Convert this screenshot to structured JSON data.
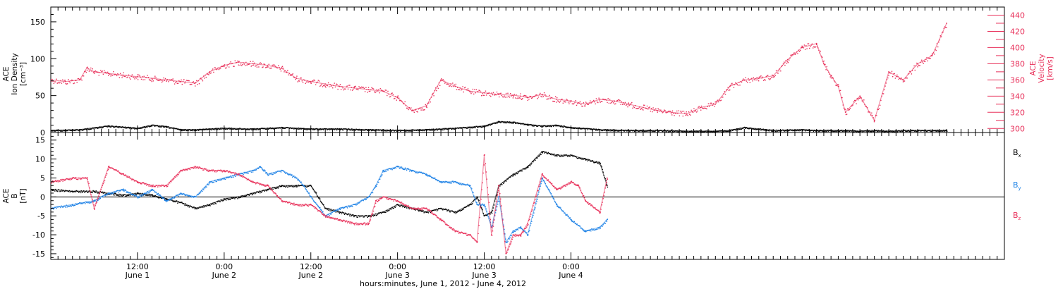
{
  "chart_data": [
    {
      "type": "scatter",
      "panel": "top",
      "ylabel_lines": [
        "ACE",
        "Ion Density",
        "[cm⁻³]"
      ],
      "ylim": [
        0,
        170
      ],
      "yticks": [
        0,
        50,
        100,
        150
      ],
      "y2label_lines": [
        "ACE",
        "Velocity",
        "[km/s]"
      ],
      "y2lim": [
        295,
        450
      ],
      "y2ticks": [
        300,
        320,
        340,
        360,
        380,
        400,
        420,
        440
      ],
      "series": [
        {
          "axis": "left",
          "color": "#000000",
          "x": [
            0,
            4,
            8,
            12,
            14,
            16,
            18,
            20,
            24,
            28,
            32,
            36,
            40,
            44,
            48,
            52,
            56,
            60,
            62,
            64,
            66,
            68,
            70,
            72,
            76,
            80,
            84,
            88,
            90,
            92,
            94,
            96,
            100,
            104,
            106,
            108,
            110,
            112,
            114,
            116,
            118,
            120,
            124
          ],
          "values": [
            3,
            4,
            9,
            6,
            10,
            8,
            4,
            4,
            6,
            5,
            7,
            5,
            5,
            4,
            3,
            4,
            6,
            9,
            15,
            14,
            11,
            9,
            10,
            7,
            4,
            3,
            3,
            2,
            2,
            2,
            3,
            7,
            3,
            4,
            3,
            3,
            3,
            2,
            3,
            2,
            3,
            3,
            3
          ]
        },
        {
          "axis": "right",
          "color": "#e8305a",
          "x": [
            0,
            2,
            4,
            5,
            6,
            8,
            10,
            12,
            14,
            16,
            18,
            20,
            22,
            24,
            26,
            28,
            30,
            32,
            34,
            36,
            38,
            40,
            42,
            44,
            46,
            48,
            50,
            52,
            54,
            56,
            58,
            60,
            62,
            64,
            65,
            66,
            68,
            70,
            72,
            74,
            76,
            78,
            80,
            82,
            84,
            86,
            88,
            90,
            92,
            94,
            96,
            98,
            100,
            102,
            104,
            106,
            107,
            108,
            109,
            110,
            112,
            114,
            116,
            118,
            120,
            122,
            124
          ],
          "values": [
            360,
            358,
            360,
            375,
            370,
            368,
            366,
            364,
            362,
            360,
            358,
            356,
            370,
            378,
            382,
            380,
            378,
            374,
            362,
            358,
            355,
            352,
            350,
            348,
            346,
            338,
            322,
            328,
            360,
            352,
            346,
            344,
            342,
            341,
            340,
            338,
            342,
            336,
            334,
            330,
            336,
            334,
            330,
            326,
            322,
            320,
            318,
            326,
            330,
            352,
            360,
            362,
            365,
            385,
            400,
            405,
            380,
            365,
            352,
            320,
            340,
            310,
            370,
            360,
            380,
            390,
            430
          ]
        }
      ]
    },
    {
      "type": "scatter",
      "panel": "bottom",
      "ylabel_lines": [
        "ACE",
        "B",
        "[nT]"
      ],
      "ylim": [
        -16.5,
        17
      ],
      "yticks": [
        -15,
        -10,
        -5,
        0,
        5,
        10,
        15
      ],
      "xlabel": "hours:minutes, June  1, 2012 - June  4, 2012",
      "xlim": [
        0,
        132
      ],
      "x_ticks": [
        {
          "x": 12,
          "time": "12:00",
          "day": "June 1"
        },
        {
          "x": 24,
          "time": "0:00",
          "day": "June 2"
        },
        {
          "x": 36,
          "time": "12:00",
          "day": "June 2"
        },
        {
          "x": 48,
          "time": "0:00",
          "day": "June 3"
        },
        {
          "x": 60,
          "time": "12:00",
          "day": "June 3"
        },
        {
          "x": 72,
          "time": "0:00",
          "day": "June 4"
        }
      ],
      "x_minor_step_hours": 1,
      "legend": [
        "Bx",
        "By",
        "Bz"
      ],
      "series": [
        {
          "name": "Bx",
          "label_base": "B",
          "label_sub": "x",
          "color": "#000000",
          "x": [
            0,
            3,
            6,
            8,
            10,
            12,
            14,
            16,
            18,
            20,
            22,
            24,
            26,
            28,
            30,
            32,
            34,
            36,
            38,
            40,
            42,
            44,
            46,
            48,
            50,
            52,
            54,
            56,
            58,
            59,
            60,
            61,
            62,
            64,
            66,
            68,
            70,
            72,
            74,
            76,
            77
          ],
          "values": [
            2,
            1.5,
            1.5,
            1,
            0.5,
            1,
            0.5,
            -0.5,
            -1.5,
            -3,
            -2,
            -0.5,
            0,
            1,
            2,
            3,
            3,
            3,
            -3,
            -4,
            -5,
            -5,
            -4,
            -2,
            -3,
            -4,
            -3,
            -4,
            -2,
            0,
            -5,
            -4,
            3,
            6,
            8,
            12,
            11,
            11,
            10,
            9,
            3
          ]
        },
        {
          "name": "By",
          "label_base": "B",
          "label_sub": "y",
          "color": "#1e82e6",
          "x": [
            0,
            3,
            6,
            8,
            10,
            12,
            14,
            16,
            18,
            20,
            22,
            24,
            26,
            28,
            29,
            30,
            32,
            34,
            35,
            36,
            38,
            40,
            42,
            44,
            45,
            46,
            48,
            50,
            52,
            54,
            56,
            58,
            59,
            60,
            61,
            62,
            63,
            64,
            65,
            66,
            68,
            70,
            72,
            74,
            76,
            77
          ],
          "values": [
            -3,
            -2,
            -1,
            1,
            2,
            0,
            2,
            -1,
            1,
            0,
            4,
            5,
            6,
            7,
            8,
            6,
            7,
            5,
            3,
            0,
            -5,
            -3,
            -2,
            0,
            3,
            7,
            8,
            7,
            6,
            4,
            4,
            3,
            -2,
            -2,
            -8,
            0,
            -12,
            -9,
            -8,
            -10,
            5,
            -2,
            -6,
            -9,
            -8,
            -6
          ]
        },
        {
          "name": "Bz",
          "label_base": "B",
          "label_sub": "z",
          "color": "#e8305a",
          "x": [
            0,
            3,
            5,
            6,
            8,
            10,
            12,
            14,
            16,
            18,
            20,
            22,
            24,
            26,
            28,
            30,
            32,
            34,
            36,
            38,
            40,
            42,
            44,
            45,
            46,
            48,
            50,
            52,
            54,
            56,
            58,
            59,
            60,
            61,
            62,
            63,
            64,
            65,
            66,
            68,
            70,
            72,
            73,
            74,
            76,
            77
          ],
          "values": [
            4,
            5,
            5,
            -3,
            8,
            6,
            4,
            3,
            3,
            7,
            8,
            7,
            7,
            6,
            4,
            3,
            -1,
            -2,
            -2,
            -5,
            -6,
            -7,
            -7,
            -1,
            0,
            -1,
            -3,
            -3,
            -6,
            -9,
            -10,
            -12,
            11,
            -10,
            3,
            -15,
            -10,
            -10,
            -7,
            6,
            2,
            4,
            3,
            -1,
            -4,
            5
          ]
        }
      ]
    }
  ]
}
